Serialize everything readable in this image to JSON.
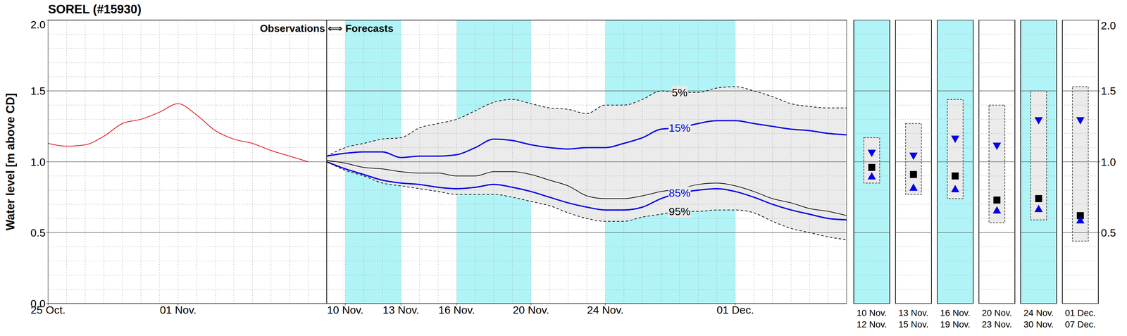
{
  "chart_data": {
    "type": "line",
    "title": "SOREL (#15930)",
    "y_label": "Water level [m above CD]",
    "annotations": [
      "Observations ⟺ Forecasts"
    ],
    "xlim": [
      0,
      43
    ],
    "xticks": [
      {
        "value": 0,
        "label": "25 Oct."
      },
      {
        "value": 7,
        "label": "01 Nov."
      },
      {
        "value": 16,
        "label": "10 Nov."
      },
      {
        "value": 19,
        "label": "13 Nov."
      },
      {
        "value": 22,
        "label": "16 Nov."
      },
      {
        "value": 26,
        "label": "20 Nov."
      },
      {
        "value": 30,
        "label": "24 Nov."
      },
      {
        "value": 37,
        "label": "01 Dec."
      }
    ],
    "ylim": [
      0,
      2
    ],
    "yticks": [
      {
        "value": 0,
        "label": "0.0"
      },
      {
        "value": 0.5,
        "label": "0.5"
      },
      {
        "value": 1,
        "label": "1.0"
      },
      {
        "value": 1.5,
        "label": "1.5"
      },
      {
        "value": 2,
        "label": "2.0"
      }
    ],
    "grid": true,
    "series": [
      {
        "color": "#e00000",
        "line_style": "solid",
        "x": [
          0,
          1,
          2,
          3,
          4,
          5,
          6,
          7,
          8,
          9,
          10,
          11,
          12,
          13,
          14
        ],
        "values": [
          1.13,
          1.11,
          1.12,
          1.18,
          1.27,
          1.3,
          1.35,
          1.41,
          1.33,
          1.22,
          1.16,
          1.13,
          1.08,
          1.04,
          1.0
        ]
      },
      {
        "name": "5%",
        "color": "#000000",
        "line_style": "dashed",
        "x": [
          15,
          16,
          17,
          18,
          19,
          20,
          21,
          22,
          23,
          24,
          25,
          26,
          27,
          28,
          29,
          30,
          31,
          32,
          33,
          34,
          35,
          36,
          37,
          38,
          39,
          40,
          41,
          42,
          43
        ],
        "values": [
          1.04,
          1.1,
          1.13,
          1.16,
          1.17,
          1.24,
          1.27,
          1.3,
          1.36,
          1.42,
          1.44,
          1.41,
          1.38,
          1.37,
          1.34,
          1.4,
          1.4,
          1.44,
          1.5,
          1.49,
          1.49,
          1.52,
          1.53,
          1.5,
          1.46,
          1.41,
          1.39,
          1.38,
          1.38
        ]
      },
      {
        "name": "15%",
        "color": "#0000e6",
        "line_style": "solid",
        "marker": "triangle-down",
        "x": [
          15,
          16,
          17,
          18,
          19,
          20,
          21,
          22,
          23,
          24,
          25,
          26,
          27,
          28,
          29,
          30,
          31,
          32,
          33,
          34,
          35,
          36,
          37,
          38,
          39,
          40,
          41,
          42,
          43
        ],
        "values": [
          1.04,
          1.06,
          1.07,
          1.07,
          1.03,
          1.04,
          1.04,
          1.05,
          1.1,
          1.16,
          1.15,
          1.12,
          1.1,
          1.09,
          1.1,
          1.1,
          1.13,
          1.17,
          1.23,
          1.24,
          1.27,
          1.29,
          1.29,
          1.27,
          1.25,
          1.23,
          1.22,
          1.2,
          1.19
        ]
      },
      {
        "color": "#000000",
        "line_style": "solid",
        "marker": "square",
        "x": [
          15,
          16,
          17,
          18,
          19,
          20,
          21,
          22,
          23,
          24,
          25,
          26,
          27,
          28,
          29,
          30,
          31,
          32,
          33,
          34,
          35,
          36,
          37,
          38,
          39,
          40,
          41,
          42,
          43
        ],
        "values": [
          1.01,
          0.99,
          0.96,
          0.95,
          0.93,
          0.92,
          0.92,
          0.9,
          0.9,
          0.93,
          0.93,
          0.91,
          0.87,
          0.83,
          0.76,
          0.74,
          0.74,
          0.76,
          0.79,
          0.81,
          0.84,
          0.85,
          0.83,
          0.79,
          0.74,
          0.71,
          0.67,
          0.65,
          0.62
        ]
      },
      {
        "name": "85%",
        "color": "#0000e6",
        "line_style": "solid",
        "marker": "triangle-up",
        "x": [
          15,
          16,
          17,
          18,
          19,
          20,
          21,
          22,
          23,
          24,
          25,
          26,
          27,
          28,
          29,
          30,
          31,
          32,
          33,
          34,
          35,
          36,
          37,
          38,
          39,
          40,
          41,
          42,
          43
        ],
        "values": [
          1.0,
          0.95,
          0.91,
          0.87,
          0.85,
          0.84,
          0.82,
          0.81,
          0.82,
          0.84,
          0.82,
          0.79,
          0.75,
          0.71,
          0.68,
          0.66,
          0.66,
          0.68,
          0.74,
          0.78,
          0.8,
          0.81,
          0.79,
          0.75,
          0.7,
          0.66,
          0.63,
          0.6,
          0.59
        ]
      },
      {
        "name": "95%",
        "color": "#000000",
        "line_style": "dashed",
        "x": [
          15,
          16,
          17,
          18,
          19,
          20,
          21,
          22,
          23,
          24,
          25,
          26,
          27,
          28,
          29,
          30,
          31,
          32,
          33,
          34,
          35,
          36,
          37,
          38,
          39,
          40,
          41,
          42,
          43
        ],
        "values": [
          1.0,
          0.94,
          0.9,
          0.85,
          0.83,
          0.81,
          0.79,
          0.77,
          0.77,
          0.77,
          0.75,
          0.72,
          0.69,
          0.64,
          0.6,
          0.58,
          0.58,
          0.61,
          0.63,
          0.65,
          0.65,
          0.66,
          0.66,
          0.64,
          0.58,
          0.53,
          0.5,
          0.47,
          0.45
        ]
      }
    ],
    "periods": [
      {
        "start": 16,
        "end": 19,
        "start_label": "10 Nov.",
        "end_label": "12 Nov.",
        "shaded": true,
        "values": [
          null,
          1.17,
          1.06,
          0.96,
          0.9,
          0.85
        ]
      },
      {
        "start": 19,
        "end": 22,
        "start_label": "13 Nov.",
        "end_label": "15 Nov.",
        "shaded": false,
        "values": [
          null,
          1.27,
          1.04,
          0.91,
          0.82,
          0.77
        ]
      },
      {
        "start": 22,
        "end": 26,
        "start_label": "16 Nov.",
        "end_label": "19 Nov.",
        "shaded": true,
        "values": [
          null,
          1.44,
          1.16,
          0.9,
          0.81,
          0.74
        ]
      },
      {
        "start": 26,
        "end": 30,
        "start_label": "20 Nov.",
        "end_label": "23 Nov.",
        "shaded": false,
        "values": [
          null,
          1.4,
          1.11,
          0.73,
          0.66,
          0.57
        ]
      },
      {
        "start": 30,
        "end": 37,
        "start_label": "24 Nov.",
        "end_label": "30 Nov.",
        "shaded": true,
        "values": [
          null,
          1.5,
          1.29,
          0.74,
          0.67,
          0.59
        ]
      },
      {
        "start": 37,
        "end": 44,
        "start_label": "01 Dec.",
        "end_label": "07 Dec.",
        "shaded": false,
        "values": [
          null,
          1.53,
          1.29,
          0.62,
          0.59,
          0.44
        ]
      }
    ]
  }
}
